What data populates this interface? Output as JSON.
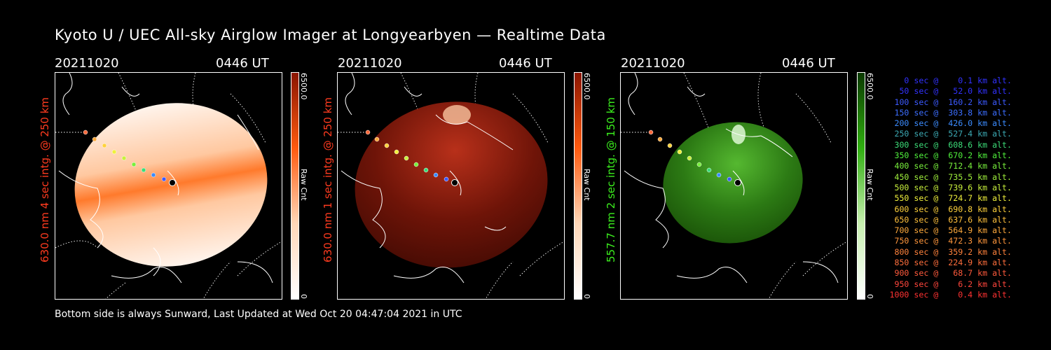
{
  "title": "Kyoto U / UEC All-sky Airglow Imager at Longyearbyen — Realtime Data",
  "panels": [
    {
      "date": "20211020",
      "time": "0446 UT",
      "side_label": "630.0 nm 4 sec intg. @ 250 km",
      "label_color": "#ff3b1f",
      "cbar_max": "6500.0",
      "cbar_min": "0",
      "cbar_unit": "Raw Cnt",
      "colormap": [
        "#8a1500",
        "#ff5a0f",
        "#ffd8b8",
        "#ffffff"
      ]
    },
    {
      "date": "20211020",
      "time": "0446 UT",
      "side_label": "630.0 nm 1 sec intg. @ 250 km",
      "label_color": "#ff3b1f",
      "cbar_max": "6500.0",
      "cbar_min": "0",
      "cbar_unit": "Raw Cnt",
      "colormap": [
        "#8a1500",
        "#ff5a0f",
        "#ffd8b8",
        "#ffffff"
      ]
    },
    {
      "date": "20211020",
      "time": "0446 UT",
      "side_label": "557.7 nm 2 sec intg. @ 150 km",
      "label_color": "#3cf01e",
      "cbar_max": "6500.0",
      "cbar_min": "0",
      "cbar_unit": "Raw Cnt",
      "colormap": [
        "#0b3a00",
        "#2fae10",
        "#c8f0b0",
        "#ffffff"
      ]
    }
  ],
  "footer": "Bottom side is always Sunward, Last Updated at Wed Oct 20 04:47:04 2021 in UTC",
  "legend": [
    {
      "text": "   0 sec @    0.1 km alt.",
      "color": "#3232ff"
    },
    {
      "text": "  50 sec @   52.0 km alt.",
      "color": "#3232ff"
    },
    {
      "text": " 100 sec @  160.2 km alt.",
      "color": "#3c5aff"
    },
    {
      "text": " 150 sec @  303.8 km alt.",
      "color": "#3c6eff"
    },
    {
      "text": " 200 sec @  426.0 km alt.",
      "color": "#3c8cff"
    },
    {
      "text": " 250 sec @  527.4 km alt.",
      "color": "#3caab4"
    },
    {
      "text": " 300 sec @  608.6 km alt.",
      "color": "#3cdc78"
    },
    {
      "text": " 350 sec @  670.2 km alt.",
      "color": "#50f03c"
    },
    {
      "text": " 400 sec @  712.4 km alt.",
      "color": "#78f03c"
    },
    {
      "text": " 450 sec @  735.5 km alt.",
      "color": "#a0f03c"
    },
    {
      "text": " 500 sec @  739.6 km alt.",
      "color": "#c8f03c"
    },
    {
      "text": " 550 sec @  724.7 km alt.",
      "color": "#f0f03c"
    },
    {
      "text": " 600 sec @  690.8 km alt.",
      "color": "#ffd23c"
    },
    {
      "text": " 650 sec @  637.6 km alt.",
      "color": "#ffc03c"
    },
    {
      "text": " 700 sec @  564.9 km alt.",
      "color": "#ffaa3c"
    },
    {
      "text": " 750 sec @  472.3 km alt.",
      "color": "#ff963c"
    },
    {
      "text": " 800 sec @  359.2 km alt.",
      "color": "#ff823c"
    },
    {
      "text": " 850 sec @  224.9 km alt.",
      "color": "#ff6e3c"
    },
    {
      "text": " 900 sec @   68.7 km alt.",
      "color": "#ff5a3c"
    },
    {
      "text": " 950 sec @    6.2 km alt.",
      "color": "#ff463c"
    },
    {
      "text": "1000 sec @    0.4 km alt.",
      "color": "#ff3232"
    }
  ]
}
